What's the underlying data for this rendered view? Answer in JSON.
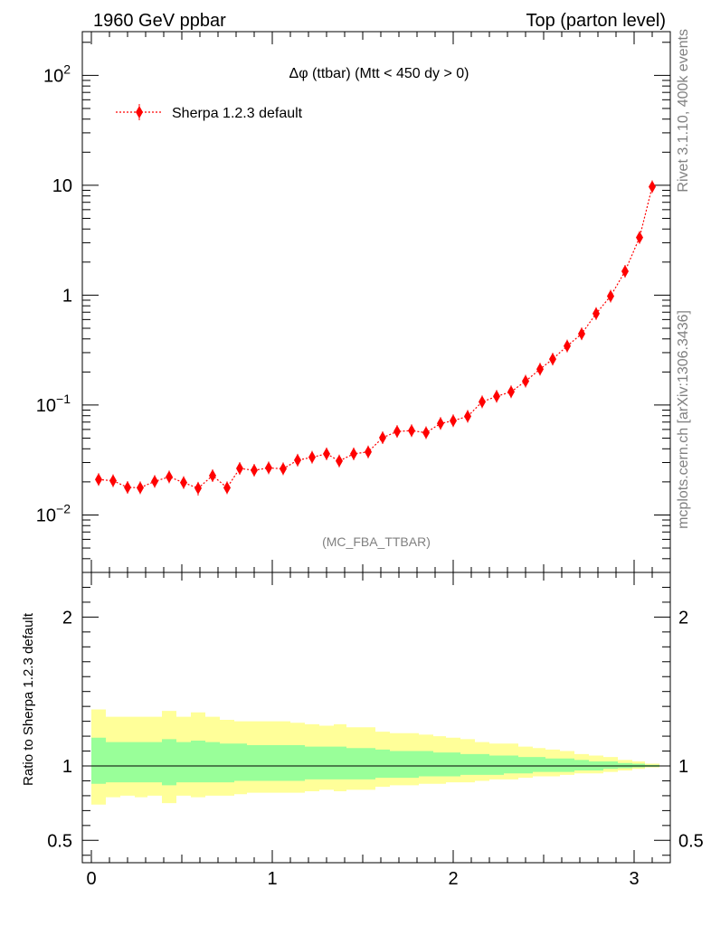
{
  "header": {
    "left": "1960 GeV ppbar",
    "right": "Top (parton level)"
  },
  "side_labels": {
    "rivet": "Rivet 3.1.10,  400k events",
    "mcplots": "mcplots.cern.ch [arXiv:1306.3436]"
  },
  "chart_data": [
    {
      "type": "scatter",
      "title": "Δφ (ttbar) (Mtt < 450 dy > 0)",
      "annotation": "(MC_FBA_TTBAR)",
      "yscale": "log",
      "ylim": [
        0.003,
        250
      ],
      "xlim": [
        -0.05,
        3.2
      ],
      "legend_placement": "top-left",
      "y_tick_labels": [
        {
          "value": 0.01,
          "base": "10",
          "exp": "−2"
        },
        {
          "value": 0.1,
          "base": "10",
          "exp": "−1"
        },
        {
          "value": 1,
          "base": "1",
          "exp": ""
        },
        {
          "value": 10,
          "base": "10",
          "exp": ""
        },
        {
          "value": 100,
          "base": "10",
          "exp": "2"
        }
      ],
      "series": [
        {
          "name": "Sherpa 1.2.3 default",
          "color": "#ff0000",
          "x": [
            0.04,
            0.12,
            0.2,
            0.27,
            0.35,
            0.43,
            0.51,
            0.59,
            0.67,
            0.75,
            0.82,
            0.9,
            0.98,
            1.06,
            1.14,
            1.22,
            1.3,
            1.37,
            1.45,
            1.53,
            1.61,
            1.69,
            1.77,
            1.85,
            1.93,
            2.0,
            2.08,
            2.16,
            2.24,
            2.32,
            2.4,
            2.48,
            2.55,
            2.63,
            2.71,
            2.79,
            2.87,
            2.95,
            3.03,
            3.1
          ],
          "y": [
            0.021,
            0.0205,
            0.0178,
            0.0177,
            0.0202,
            0.0222,
            0.0197,
            0.0175,
            0.0228,
            0.0177,
            0.0265,
            0.0255,
            0.0268,
            0.0263,
            0.0315,
            0.0335,
            0.036,
            0.031,
            0.036,
            0.0375,
            0.0505,
            0.0575,
            0.0585,
            0.056,
            0.068,
            0.072,
            0.079,
            0.107,
            0.12,
            0.132,
            0.165,
            0.212,
            0.262,
            0.345,
            0.445,
            0.68,
            0.98,
            1.65,
            3.35,
            9.7
          ],
          "yerr": [
            0.002,
            0.002,
            0.002,
            0.002,
            0.002,
            0.0025,
            0.002,
            0.0025,
            0.0025,
            0.002,
            0.0025,
            0.002,
            0.0025,
            0.002,
            0.0025,
            0.0025,
            0.003,
            0.003,
            0.003,
            0.003,
            0.004,
            0.004,
            0.004,
            0.004,
            0.005,
            0.005,
            0.005,
            0.007,
            0.007,
            0.008,
            0.009,
            0.011,
            0.012,
            0.015,
            0.018,
            0.025,
            0.03,
            0.045,
            0.07,
            0.12
          ]
        }
      ]
    },
    {
      "type": "area",
      "ylabel": "Ratio to Sherpa 1.2.3 default",
      "ylim": [
        0.35,
        2.3
      ],
      "xlim": [
        -0.05,
        3.2
      ],
      "y_tick_labels": [
        "0.5",
        "1",
        "2"
      ],
      "y_ticks": [
        0.5,
        1,
        2
      ],
      "x_tick_labels": [
        "0",
        "1",
        "2",
        "3"
      ],
      "x_ticks": [
        0,
        1,
        2,
        3
      ],
      "colors": {
        "outer_band": "#ffff99",
        "inner_band": "#99ff99",
        "reference": "#000000"
      },
      "x_edges": [
        0.0,
        0.08,
        0.16,
        0.24,
        0.31,
        0.39,
        0.47,
        0.55,
        0.63,
        0.71,
        0.79,
        0.86,
        0.94,
        1.02,
        1.1,
        1.18,
        1.26,
        1.34,
        1.41,
        1.49,
        1.57,
        1.65,
        1.73,
        1.81,
        1.89,
        1.96,
        2.04,
        2.12,
        2.2,
        2.28,
        2.36,
        2.44,
        2.51,
        2.59,
        2.67,
        2.75,
        2.83,
        2.91,
        2.99,
        3.06,
        3.14
      ],
      "outer_upper": [
        1.38,
        1.33,
        1.33,
        1.33,
        1.33,
        1.37,
        1.33,
        1.36,
        1.33,
        1.31,
        1.3,
        1.3,
        1.3,
        1.3,
        1.29,
        1.28,
        1.27,
        1.28,
        1.26,
        1.26,
        1.23,
        1.22,
        1.22,
        1.21,
        1.2,
        1.19,
        1.18,
        1.16,
        1.15,
        1.15,
        1.13,
        1.12,
        1.11,
        1.1,
        1.08,
        1.07,
        1.06,
        1.04,
        1.03,
        1.015
      ],
      "outer_lower": [
        0.74,
        0.79,
        0.8,
        0.79,
        0.8,
        0.75,
        0.8,
        0.79,
        0.8,
        0.8,
        0.81,
        0.82,
        0.82,
        0.82,
        0.82,
        0.83,
        0.84,
        0.83,
        0.84,
        0.84,
        0.86,
        0.87,
        0.87,
        0.88,
        0.88,
        0.89,
        0.89,
        0.9,
        0.91,
        0.91,
        0.92,
        0.93,
        0.93,
        0.94,
        0.95,
        0.95,
        0.96,
        0.97,
        0.98,
        0.99
      ],
      "inner_upper": [
        1.19,
        1.16,
        1.16,
        1.16,
        1.16,
        1.18,
        1.16,
        1.17,
        1.16,
        1.15,
        1.15,
        1.14,
        1.14,
        1.14,
        1.14,
        1.13,
        1.13,
        1.13,
        1.12,
        1.12,
        1.11,
        1.1,
        1.1,
        1.1,
        1.09,
        1.09,
        1.08,
        1.08,
        1.07,
        1.07,
        1.06,
        1.06,
        1.05,
        1.05,
        1.04,
        1.03,
        1.03,
        1.02,
        1.015,
        1.007
      ],
      "inner_lower": [
        0.88,
        0.89,
        0.89,
        0.89,
        0.89,
        0.87,
        0.89,
        0.89,
        0.89,
        0.89,
        0.9,
        0.9,
        0.9,
        0.9,
        0.9,
        0.91,
        0.91,
        0.91,
        0.91,
        0.91,
        0.92,
        0.92,
        0.92,
        0.93,
        0.93,
        0.93,
        0.94,
        0.94,
        0.94,
        0.95,
        0.95,
        0.96,
        0.96,
        0.96,
        0.97,
        0.97,
        0.98,
        0.985,
        0.99,
        0.995
      ]
    }
  ]
}
